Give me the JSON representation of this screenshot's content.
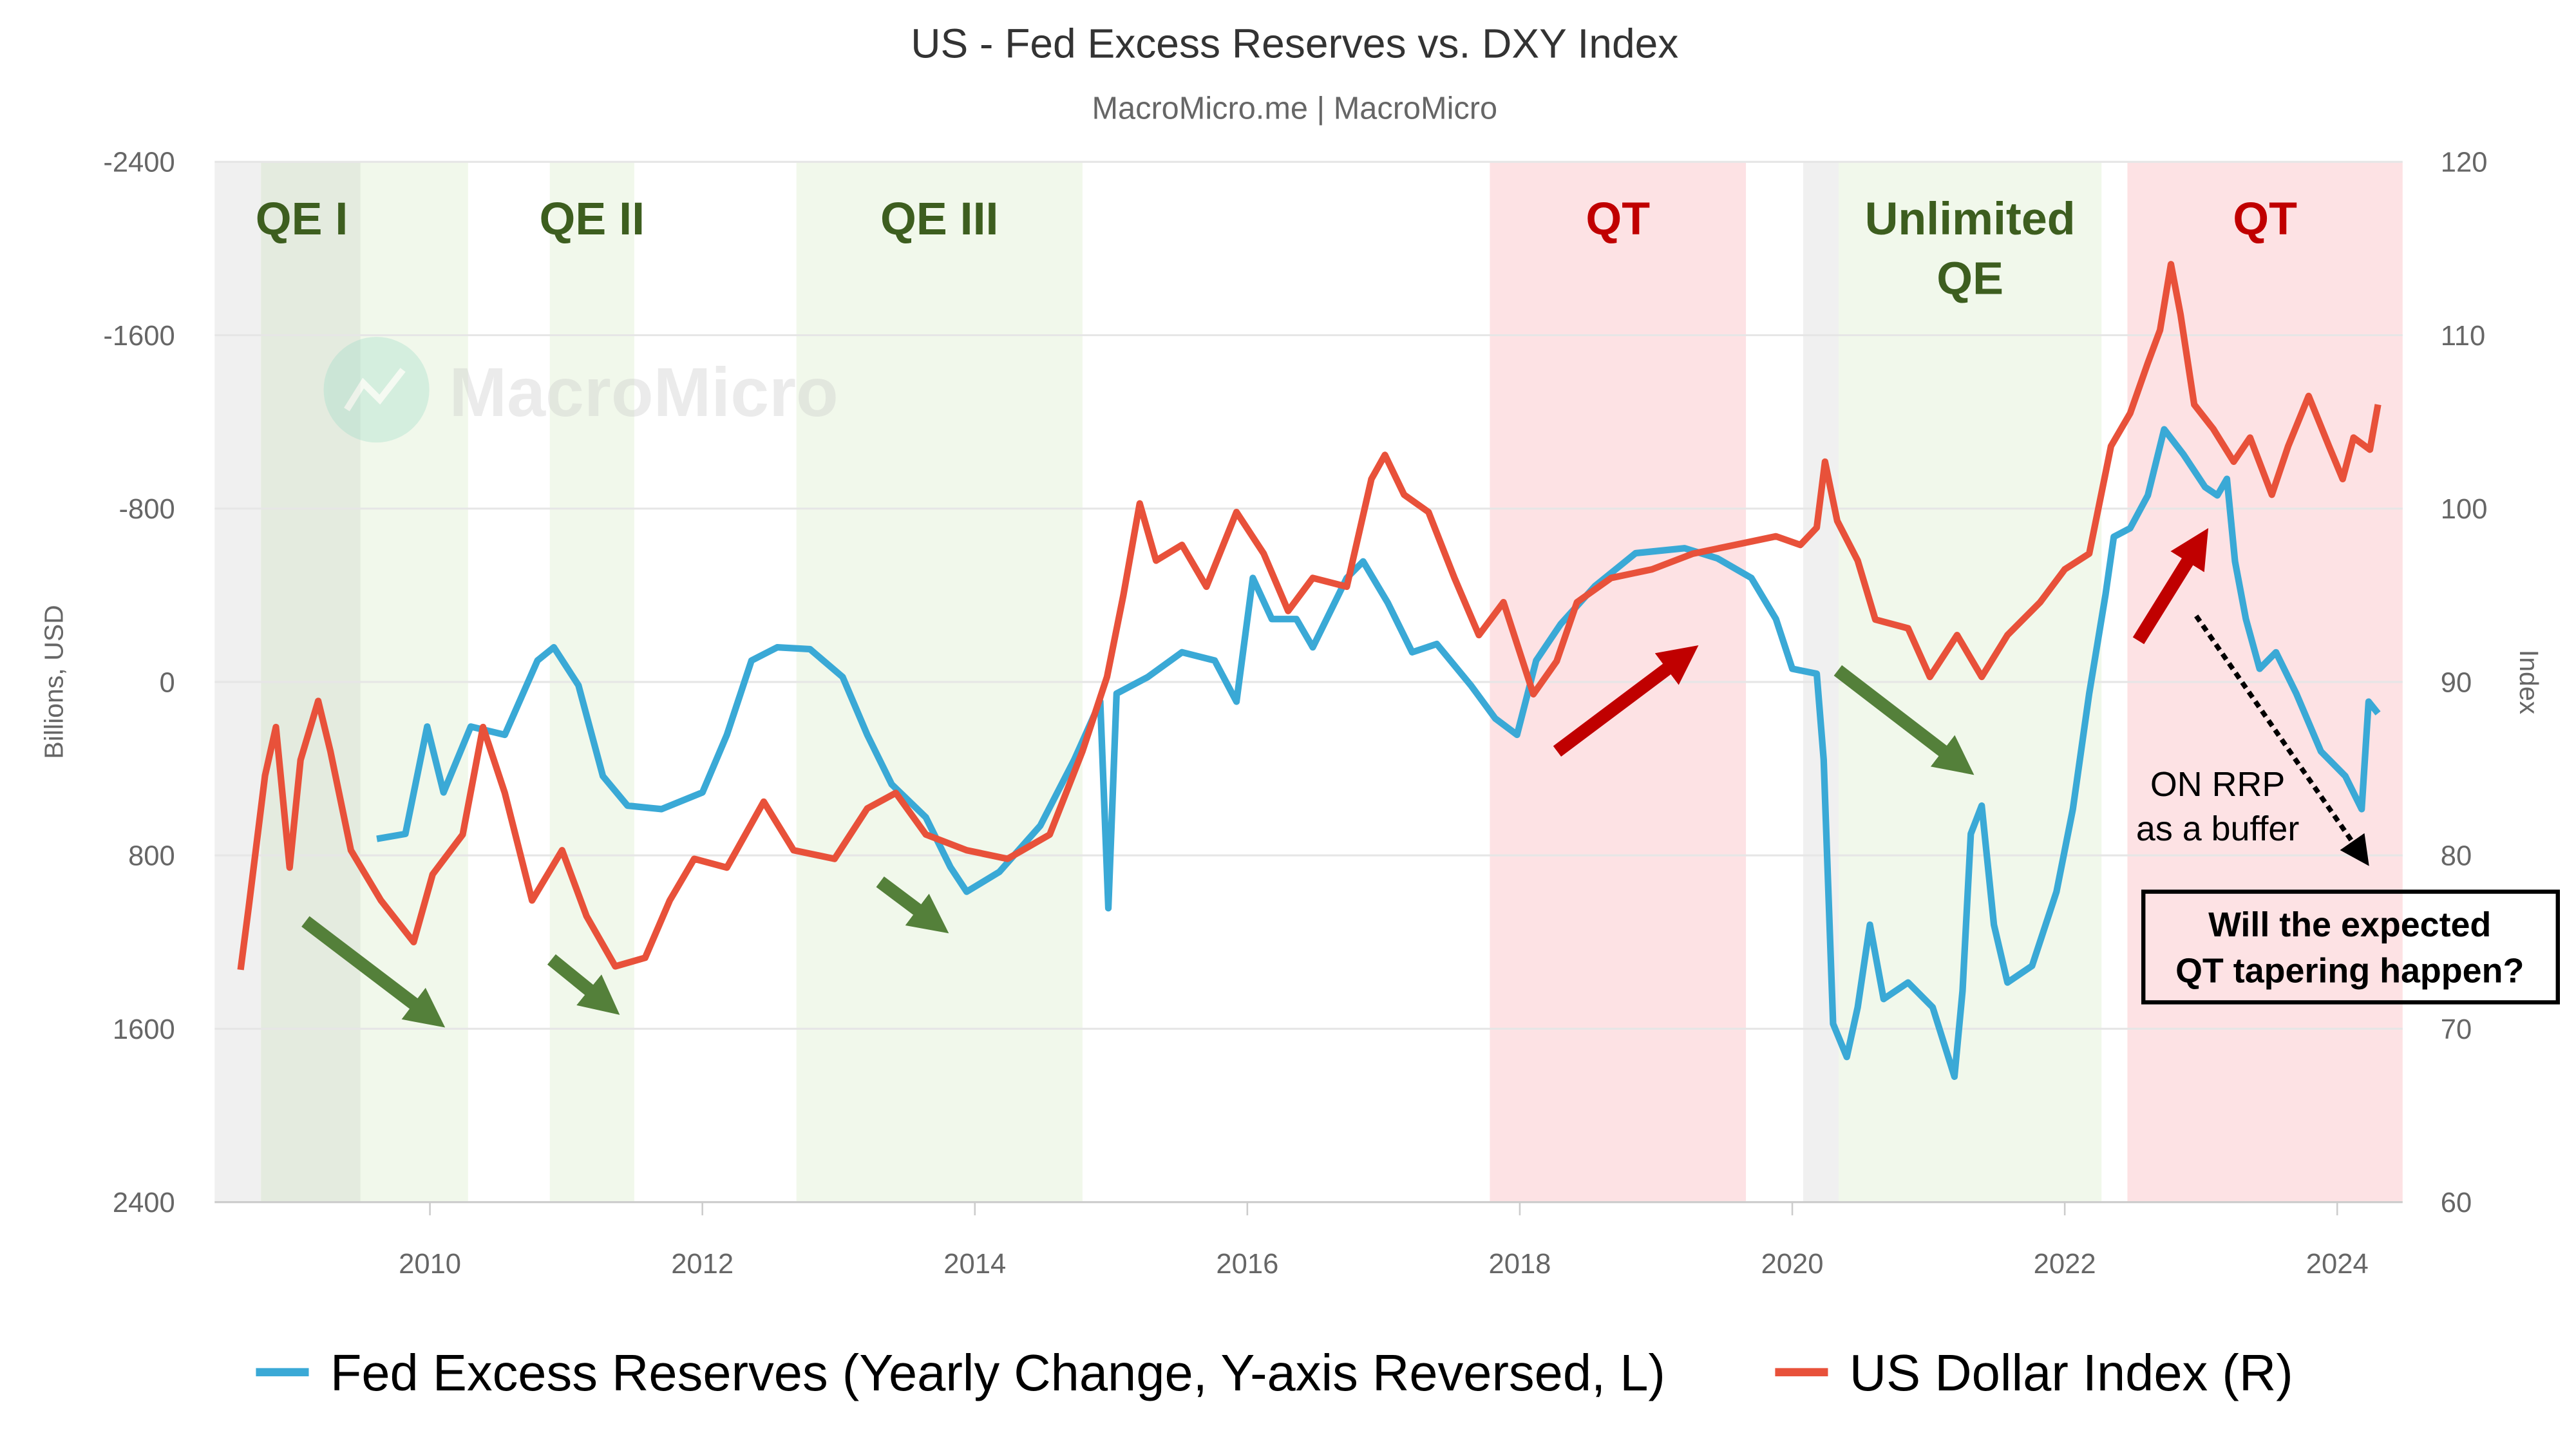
{
  "chart_data": {
    "type": "line",
    "title": "US - Fed Excess Reserves vs. DXY Index",
    "subtitle": "MacroMicro.me | MacroMicro",
    "watermark": "MacroMicro",
    "grid": true,
    "legend_position": "bottom",
    "x_ticks": [
      "2010",
      "2012",
      "2014",
      "2016",
      "2018",
      "2020",
      "2022",
      "2024"
    ],
    "xlim": [
      2008.42,
      2024.48
    ],
    "y_left": {
      "label": "Billions, USD",
      "ticks": [
        "-2400",
        "-1600",
        "-800",
        "0",
        "800",
        "1600",
        "2400"
      ],
      "range": [
        -2400,
        2400
      ],
      "reversed": true
    },
    "y_right": {
      "label": "Index",
      "ticks": [
        "120",
        "110",
        "100",
        "90",
        "80",
        "70",
        "60"
      ],
      "range": [
        60,
        120
      ]
    },
    "colors": {
      "reserves": "#3aa9d6",
      "dxy": "#e8513a",
      "qe_band": "#f1f8eb",
      "qe_dark_band": "#e4ebdf",
      "gray_band": "#f0f0f0",
      "qt_band": "#fde2e4",
      "qe_label": "#3d5e1f",
      "qt_label": "#c00000",
      "green_arrow": "#54803a",
      "red_arrow": "#c00000"
    },
    "regions": [
      {
        "label": "",
        "kind": "gray",
        "from": 2008.42,
        "to": 2008.76
      },
      {
        "label": "QE I",
        "kind": "qe",
        "from": 2008.76,
        "to": 2010.28,
        "dark_until": 2009.49
      },
      {
        "label": "QE II",
        "kind": "qe",
        "from": 2010.88,
        "to": 2011.5
      },
      {
        "label": "QE III",
        "kind": "qe",
        "from": 2012.69,
        "to": 2014.79
      },
      {
        "label": "QT",
        "kind": "qt",
        "from": 2017.78,
        "to": 2019.66
      },
      {
        "label": "",
        "kind": "gray",
        "from": 2020.08,
        "to": 2020.34
      },
      {
        "label": "Unlimited\nQE",
        "kind": "qe",
        "from": 2020.34,
        "to": 2022.27
      },
      {
        "label": "QT",
        "kind": "qt",
        "from": 2022.46,
        "to": 2024.48
      }
    ],
    "series": [
      {
        "name": "Fed Excess Reserves (Yearly Change, Y-axis Reversed, L)",
        "axis": "left",
        "x": [
          2009.61,
          2009.82,
          2009.98,
          2010.1,
          2010.3,
          2010.55,
          2010.79,
          2010.91,
          2011.09,
          2011.27,
          2011.45,
          2011.7,
          2012.0,
          2012.18,
          2012.36,
          2012.55,
          2012.79,
          2013.03,
          2013.21,
          2013.39,
          2013.64,
          2013.82,
          2013.94,
          2014.18,
          2014.48,
          2014.73,
          2014.92,
          2014.98,
          2015.04,
          2015.27,
          2015.52,
          2015.76,
          2015.92,
          2016.04,
          2016.18,
          2016.36,
          2016.48,
          2016.73,
          2016.85,
          2017.03,
          2017.21,
          2017.39,
          2017.64,
          2017.82,
          2017.98,
          2018.12,
          2018.3,
          2018.55,
          2018.85,
          2019.21,
          2019.45,
          2019.7,
          2019.88,
          2020.0,
          2020.18,
          2020.23,
          2020.3,
          2020.4,
          2020.48,
          2020.57,
          2020.67,
          2020.85,
          2021.03,
          2021.19,
          2021.25,
          2021.31,
          2021.39,
          2021.48,
          2021.58,
          2021.76,
          2021.94,
          2022.06,
          2022.18,
          2022.3,
          2022.36,
          2022.48,
          2022.61,
          2022.73,
          2022.87,
          2023.03,
          2023.12,
          2023.19,
          2023.25,
          2023.33,
          2023.43,
          2023.55,
          2023.7,
          2023.88,
          2024.06,
          2024.18,
          2024.23,
          2024.3
        ],
        "values": [
          724,
          701,
          206,
          510,
          206,
          244,
          -99,
          -160,
          15,
          434,
          571,
          587,
          510,
          244,
          -99,
          -160,
          -152,
          -23,
          244,
          472,
          625,
          853,
          968,
          876,
          663,
          358,
          91,
          1044,
          53,
          -23,
          -137,
          -99,
          91,
          -480,
          -290,
          -290,
          -160,
          -480,
          -556,
          -366,
          -137,
          -175,
          15,
          168,
          244,
          -99,
          -267,
          -442,
          -594,
          -617,
          -571,
          -480,
          -290,
          -61,
          -38,
          358,
          1577,
          1730,
          1501,
          1120,
          1463,
          1387,
          1501,
          1821,
          1425,
          701,
          571,
          1120,
          1387,
          1310,
          968,
          587,
          53,
          -404,
          -670,
          -709,
          -861,
          -1166,
          -1051,
          -899,
          -861,
          -937,
          -556,
          -290,
          -61,
          -137,
          53,
          320,
          434,
          587,
          91,
          145
        ]
      },
      {
        "name": "US Dollar Index (R)",
        "axis": "right",
        "x": [
          2008.61,
          2008.67,
          2008.79,
          2008.87,
          2008.97,
          2009.05,
          2009.18,
          2009.27,
          2009.42,
          2009.64,
          2009.88,
          2010.02,
          2010.24,
          2010.39,
          2010.55,
          2010.75,
          2010.97,
          2011.15,
          2011.36,
          2011.58,
          2011.76,
          2011.94,
          2012.18,
          2012.45,
          2012.67,
          2012.97,
          2013.21,
          2013.42,
          2013.64,
          2013.94,
          2014.24,
          2014.55,
          2014.79,
          2014.97,
          2015.09,
          2015.21,
          2015.33,
          2015.52,
          2015.7,
          2015.92,
          2016.12,
          2016.3,
          2016.48,
          2016.73,
          2016.91,
          2017.01,
          2017.15,
          2017.33,
          2017.52,
          2017.7,
          2017.88,
          2018.1,
          2018.27,
          2018.42,
          2018.67,
          2018.97,
          2019.27,
          2019.58,
          2019.88,
          2020.06,
          2020.18,
          2020.24,
          2020.33,
          2020.48,
          2020.61,
          2020.85,
          2021.01,
          2021.21,
          2021.39,
          2021.58,
          2021.82,
          2022.0,
          2022.18,
          2022.34,
          2022.48,
          2022.61,
          2022.7,
          2022.78,
          2022.85,
          2022.95,
          2023.09,
          2023.24,
          2023.36,
          2023.52,
          2023.64,
          2023.79,
          2023.94,
          2024.04,
          2024.12,
          2024.24,
          2024.3
        ],
        "values": [
          73.4,
          77.0,
          84.6,
          87.4,
          79.3,
          85.5,
          88.9,
          86.0,
          80.3,
          77.4,
          75.0,
          78.9,
          81.2,
          87.4,
          83.6,
          77.4,
          80.3,
          76.5,
          73.6,
          74.1,
          77.4,
          79.8,
          79.3,
          83.1,
          80.3,
          79.8,
          82.7,
          83.6,
          81.2,
          80.3,
          79.8,
          81.2,
          86.0,
          90.3,
          95.0,
          100.3,
          97.0,
          97.9,
          95.5,
          99.8,
          97.4,
          94.1,
          96.0,
          95.5,
          101.7,
          103.1,
          100.8,
          99.8,
          96.0,
          92.7,
          94.6,
          89.3,
          91.2,
          94.6,
          96.0,
          96.5,
          97.4,
          97.9,
          98.4,
          97.9,
          98.9,
          102.7,
          99.3,
          97.0,
          93.6,
          93.1,
          90.3,
          92.7,
          90.3,
          92.7,
          94.6,
          96.5,
          97.4,
          103.6,
          105.5,
          108.4,
          110.3,
          114.1,
          111.2,
          106.0,
          104.6,
          102.7,
          104.1,
          100.8,
          103.6,
          106.5,
          103.6,
          101.7,
          104.1,
          103.4,
          106.0
        ]
      }
    ],
    "annotations": {
      "on_rrp_line1": "ON RRP",
      "on_rrp_line2": "as a buffer",
      "question_line1": "Will the expected",
      "question_line2": "QT tapering happen?"
    }
  }
}
